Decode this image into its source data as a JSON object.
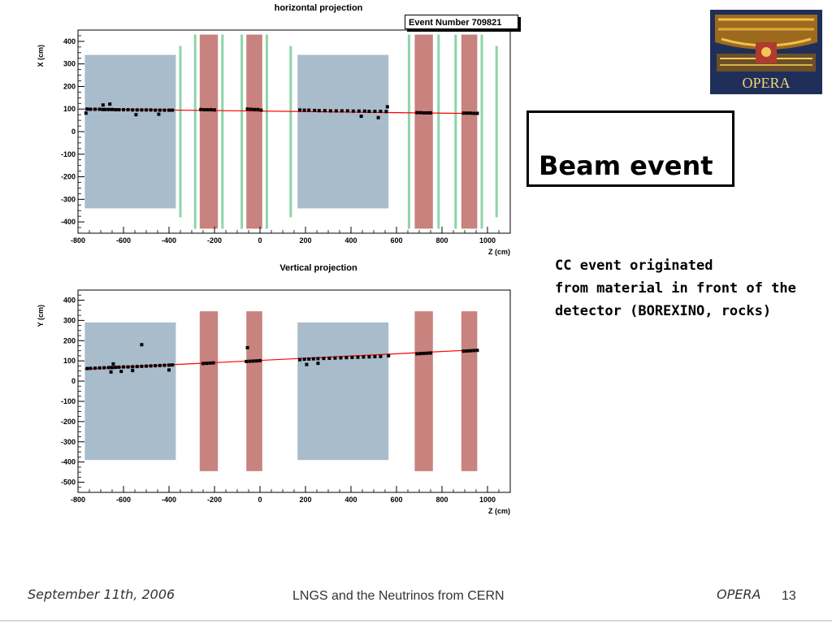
{
  "event_number": "Event Number 709821",
  "logo_text": "OPERA",
  "title": "Beam event",
  "note_lines": [
    "CC event originated",
    "from material in front of the",
    "detector (BOREXINO, rocks)"
  ],
  "footer": {
    "date": "September 11th, 2006",
    "title": "LNGS and the Neutrinos from CERN",
    "brand": "OPERA",
    "page": "13"
  },
  "colors": {
    "target_region": "#a9bccb",
    "spectrometer": "#c8837e",
    "detector_line": "#8ed4a9",
    "track": "#ff0000",
    "hit": "#000000"
  },
  "chart_data": [
    {
      "type": "scatter",
      "title": "horizontal projection",
      "xlabel": "Z (cm)",
      "ylabel": "X (cm)",
      "xlim": [
        -800,
        1100
      ],
      "ylim": [
        -450,
        450
      ],
      "x_ticks": [
        "-800",
        "-600",
        "-400",
        "-200",
        "0",
        "200",
        "400",
        "600",
        "800",
        "1000"
      ],
      "y_ticks": [
        "400",
        "300",
        "200",
        "100",
        "0",
        "-100",
        "-200",
        "-300",
        "-400"
      ],
      "regions": [
        {
          "kind": "target",
          "z": [
            -770,
            -370
          ],
          "y": [
            -340,
            340
          ]
        },
        {
          "kind": "target",
          "z": [
            165,
            565
          ],
          "y": [
            -340,
            340
          ]
        },
        {
          "kind": "spectrometer",
          "z": [
            -265,
            -185
          ],
          "y": [
            -430,
            430
          ]
        },
        {
          "kind": "spectrometer",
          "z": [
            -60,
            10
          ],
          "y": [
            -430,
            430
          ]
        },
        {
          "kind": "spectrometer",
          "z": [
            680,
            760
          ],
          "y": [
            -430,
            430
          ]
        },
        {
          "kind": "spectrometer",
          "z": [
            885,
            955
          ],
          "y": [
            -430,
            430
          ]
        }
      ],
      "detector_lines": [
        {
          "z": -350,
          "y": [
            -380,
            380
          ]
        },
        {
          "z": -285,
          "y": [
            -430,
            430
          ]
        },
        {
          "z": -165,
          "y": [
            -430,
            430
          ]
        },
        {
          "z": -80,
          "y": [
            -430,
            430
          ]
        },
        {
          "z": 30,
          "y": [
            -430,
            430
          ]
        },
        {
          "z": 135,
          "y": [
            -380,
            380
          ]
        },
        {
          "z": 655,
          "y": [
            -430,
            430
          ]
        },
        {
          "z": 785,
          "y": [
            -430,
            430
          ]
        },
        {
          "z": 860,
          "y": [
            -430,
            430
          ]
        },
        {
          "z": 975,
          "y": [
            -430,
            430
          ]
        },
        {
          "z": 1040,
          "y": [
            -380,
            380
          ]
        }
      ],
      "track": {
        "x": [
          -770,
          960
        ],
        "y": [
          100,
          80
        ]
      },
      "hits": {
        "x": [
          -760,
          -745,
          -725,
          -705,
          -690,
          -680,
          -665,
          -650,
          -635,
          -620,
          -600,
          -580,
          -560,
          -540,
          -520,
          -500,
          -480,
          -460,
          -440,
          -420,
          -400,
          -385,
          -660,
          -690,
          -545,
          -445,
          -765,
          -260,
          -245,
          -230,
          -215,
          -200,
          -55,
          -40,
          -25,
          -10,
          5,
          175,
          195,
          215,
          240,
          260,
          285,
          310,
          335,
          360,
          385,
          410,
          435,
          460,
          480,
          505,
          530,
          555,
          445,
          520,
          560,
          690,
          705,
          720,
          735,
          750,
          895,
          910,
          925,
          940,
          955
        ],
        "y": [
          100,
          99,
          99,
          99,
          98,
          98,
          98,
          98,
          97,
          97,
          97,
          97,
          96,
          96,
          96,
          96,
          96,
          95,
          95,
          95,
          95,
          95,
          122,
          118,
          75,
          77,
          82,
          98,
          97,
          97,
          97,
          96,
          100,
          99,
          98,
          98,
          95,
          96,
          95,
          95,
          94,
          93,
          93,
          92,
          92,
          92,
          92,
          91,
          91,
          91,
          90,
          90,
          90,
          89,
          68,
          62,
          110,
          84,
          84,
          83,
          83,
          83,
          82,
          82,
          82,
          81,
          81
        ]
      }
    },
    {
      "type": "scatter",
      "title": "Vertical projection",
      "xlabel": "Z (cm)",
      "ylabel": "Y (cm)",
      "xlim": [
        -800,
        1100
      ],
      "ylim": [
        -550,
        450
      ],
      "x_ticks": [
        "-800",
        "-600",
        "-400",
        "-200",
        "0",
        "200",
        "400",
        "600",
        "800",
        "1000"
      ],
      "y_ticks": [
        "400",
        "300",
        "200",
        "100",
        "0",
        "-100",
        "-200",
        "-300",
        "-400",
        "-500"
      ],
      "regions": [
        {
          "kind": "target",
          "z": [
            -770,
            -370
          ],
          "y": [
            -390,
            290
          ]
        },
        {
          "kind": "target",
          "z": [
            165,
            565
          ],
          "y": [
            -390,
            290
          ]
        },
        {
          "kind": "spectrometer",
          "z": [
            -265,
            -185
          ],
          "y": [
            -445,
            345
          ]
        },
        {
          "kind": "spectrometer",
          "z": [
            -60,
            10
          ],
          "y": [
            -445,
            345
          ]
        },
        {
          "kind": "spectrometer",
          "z": [
            680,
            760
          ],
          "y": [
            -445,
            345
          ]
        },
        {
          "kind": "spectrometer",
          "z": [
            885,
            955
          ],
          "y": [
            -445,
            345
          ]
        }
      ],
      "detector_lines": [],
      "track": {
        "x": [
          -770,
          960
        ],
        "y": [
          60,
          155
        ]
      },
      "hits": {
        "x": [
          -760,
          -745,
          -725,
          -705,
          -685,
          -665,
          -650,
          -635,
          -620,
          -600,
          -580,
          -560,
          -540,
          -520,
          -500,
          -480,
          -460,
          -440,
          -420,
          -400,
          -385,
          -655,
          -645,
          -610,
          -560,
          -520,
          -400,
          -250,
          -235,
          -220,
          -205,
          -60,
          -45,
          -30,
          -15,
          0,
          175,
          195,
          215,
          235,
          255,
          280,
          305,
          330,
          355,
          380,
          405,
          430,
          455,
          480,
          505,
          530,
          565,
          205,
          255,
          -55,
          690,
          705,
          720,
          735,
          750,
          895,
          910,
          925,
          940,
          955
        ],
        "y": [
          62,
          63,
          64,
          65,
          66,
          67,
          67,
          68,
          69,
          70,
          70,
          71,
          72,
          73,
          74,
          75,
          76,
          77,
          78,
          79,
          80,
          45,
          85,
          48,
          52,
          180,
          55,
          87,
          88,
          89,
          90,
          97,
          98,
          99,
          100,
          101,
          106,
          108,
          109,
          110,
          111,
          112,
          113,
          114,
          115,
          116,
          117,
          118,
          119,
          120,
          121,
          122,
          125,
          82,
          88,
          165,
          135,
          136,
          137,
          138,
          139,
          148,
          149,
          150,
          151,
          152
        ]
      }
    }
  ]
}
